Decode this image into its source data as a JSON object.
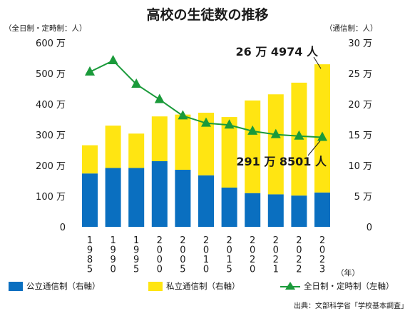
{
  "title": "高校の生徒数の推移",
  "left_unit": "（全日制・定時制：人）",
  "right_unit": "（通信制：人）",
  "year_unit": "（年）",
  "source": "出典：文部科学省「学校基本調査」",
  "legend": {
    "public": "公立通信制（右軸）",
    "private": "私立通信制（右軸）",
    "fulltime": "全日制・定時制（左軸）"
  },
  "colors": {
    "public": "#0a6fc0",
    "private": "#ffe512",
    "line": "#1a9a3a"
  },
  "chart_data": {
    "type": "bar",
    "categories": [
      "1985",
      "1990",
      "1995",
      "2000",
      "2005",
      "2010",
      "2015",
      "2020",
      "2021",
      "2022",
      "2023"
    ],
    "series": [
      {
        "name": "公立通信制（右軸）",
        "axis": "right",
        "stack": "correspondence",
        "values": [
          8.7,
          9.6,
          9.6,
          10.7,
          9.3,
          8.4,
          6.4,
          5.5,
          5.3,
          5.1,
          5.6
        ]
      },
      {
        "name": "私立通信制（右軸）",
        "axis": "right",
        "stack": "correspondence",
        "values": [
          4.6,
          6.9,
          5.6,
          7.3,
          9.0,
          10.2,
          11.5,
          15.1,
          16.3,
          18.4,
          20.9
        ]
      },
      {
        "name": "全日制・定時制（左軸）",
        "axis": "left",
        "kind": "line",
        "values": [
          5050000,
          5420000,
          4650000,
          4150000,
          3620000,
          3380000,
          3320000,
          3120000,
          3010000,
          2960000,
          2918501
        ]
      }
    ],
    "left_axis": {
      "ticks": [
        "0",
        "100 万",
        "200 万",
        "300 万",
        "400 万",
        "500 万",
        "600 万"
      ],
      "ylim": [
        0,
        6000000
      ]
    },
    "right_axis": {
      "ticks": [
        "0",
        "5 万",
        "10 万",
        "15 万",
        "20 万",
        "25 万",
        "30 万"
      ],
      "ylim": [
        0,
        30
      ]
    },
    "annotations": [
      {
        "text": "26 万 4974 人",
        "category": "2023",
        "series": "私立通信制（右軸）"
      },
      {
        "text": "291 万 8501 人",
        "category": "2023",
        "series": "全日制・定時制（左軸）"
      }
    ],
    "grid": false
  }
}
